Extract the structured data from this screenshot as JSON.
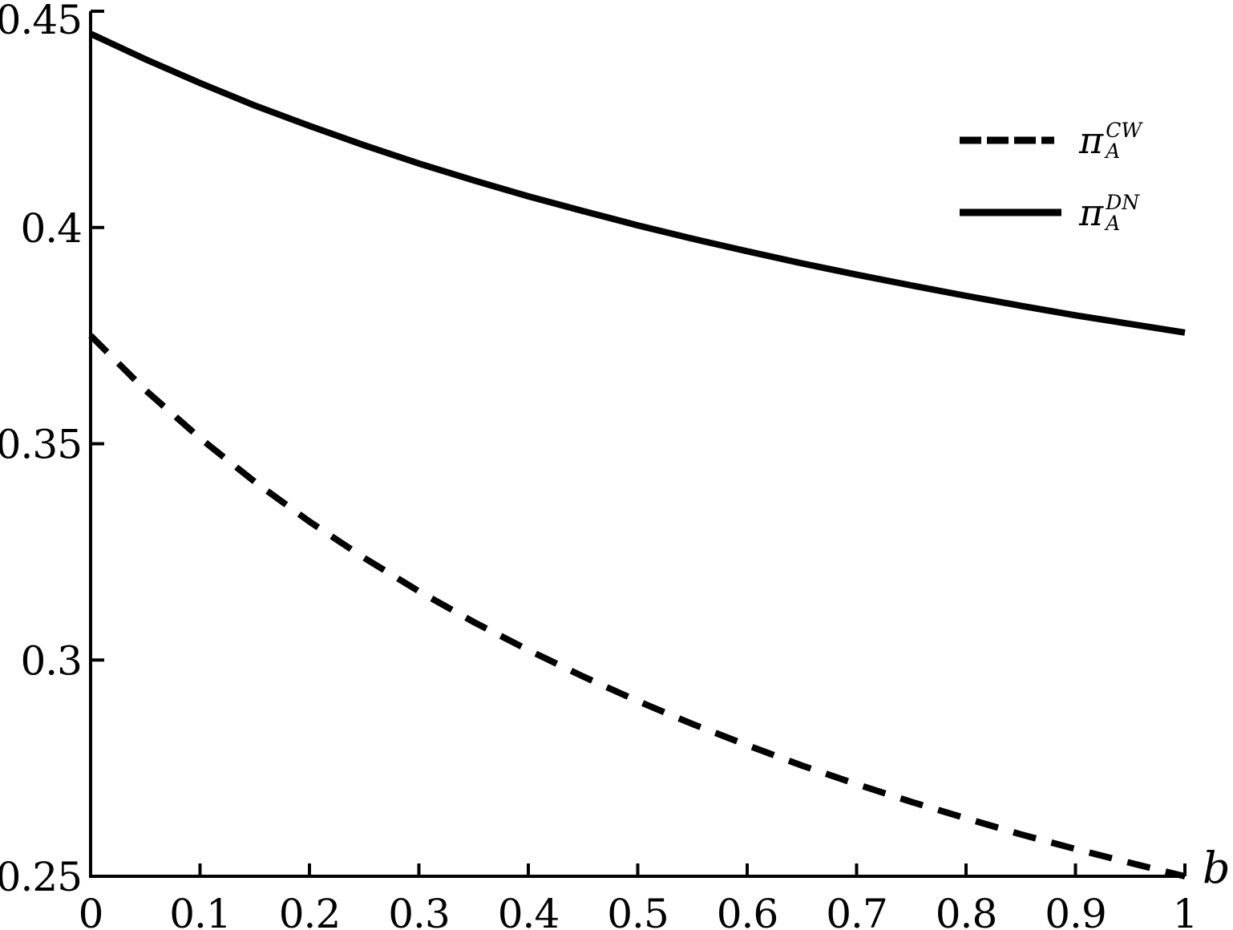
{
  "chart_data": {
    "type": "line",
    "title": "",
    "xlabel": "b",
    "ylabel": "",
    "xlim": [
      0,
      1
    ],
    "ylim": [
      0.25,
      0.45
    ],
    "x_ticks": [
      0,
      0.1,
      0.2,
      0.3,
      0.4,
      0.5,
      0.6,
      0.7,
      0.8,
      0.9,
      1
    ],
    "x_tick_labels": [
      "0",
      "0.1",
      "0.2",
      "0.3",
      "0.4",
      "0.5",
      "0.6",
      "0.7",
      "0.8",
      "0.9",
      "1"
    ],
    "y_ticks": [
      0.25,
      0.3,
      0.35,
      0.4,
      0.45
    ],
    "y_tick_labels": [
      "0.25",
      "0.3",
      "0.35",
      "0.4",
      "0.45"
    ],
    "grid": false,
    "legend_position": "upper-right",
    "x": [
      0,
      0.05,
      0.1,
      0.15,
      0.2,
      0.25,
      0.3,
      0.35,
      0.4,
      0.45,
      0.5,
      0.55,
      0.6,
      0.65,
      0.7,
      0.75,
      0.8,
      0.85,
      0.9,
      0.95,
      1
    ],
    "series": [
      {
        "name": "pi_A_CW",
        "label": "π_A^CW",
        "style": "dashed",
        "values": [
          0.375,
          0.3624,
          0.3513,
          0.3412,
          0.332,
          0.3236,
          0.3159,
          0.3088,
          0.3023,
          0.2962,
          0.2905,
          0.2852,
          0.2803,
          0.2756,
          0.2713,
          0.2672,
          0.2634,
          0.2597,
          0.2563,
          0.2531,
          0.25
        ]
      },
      {
        "name": "pi_A_DN",
        "label": "π_A^DN",
        "style": "solid",
        "values": [
          0.4448,
          0.4389,
          0.4334,
          0.4282,
          0.4235,
          0.419,
          0.4148,
          0.4109,
          0.4072,
          0.4038,
          0.4005,
          0.3974,
          0.3945,
          0.3917,
          0.3891,
          0.3866,
          0.3842,
          0.3819,
          0.3797,
          0.3777,
          0.3757
        ]
      }
    ]
  },
  "legend": {
    "items": [
      {
        "symbol": "π",
        "sup": "CW",
        "sub": "A",
        "line": "dashed"
      },
      {
        "symbol": "π",
        "sup": "DN",
        "sub": "A",
        "line": "solid"
      }
    ]
  },
  "colors": {
    "line": "#000000",
    "background": "#ffffff"
  }
}
